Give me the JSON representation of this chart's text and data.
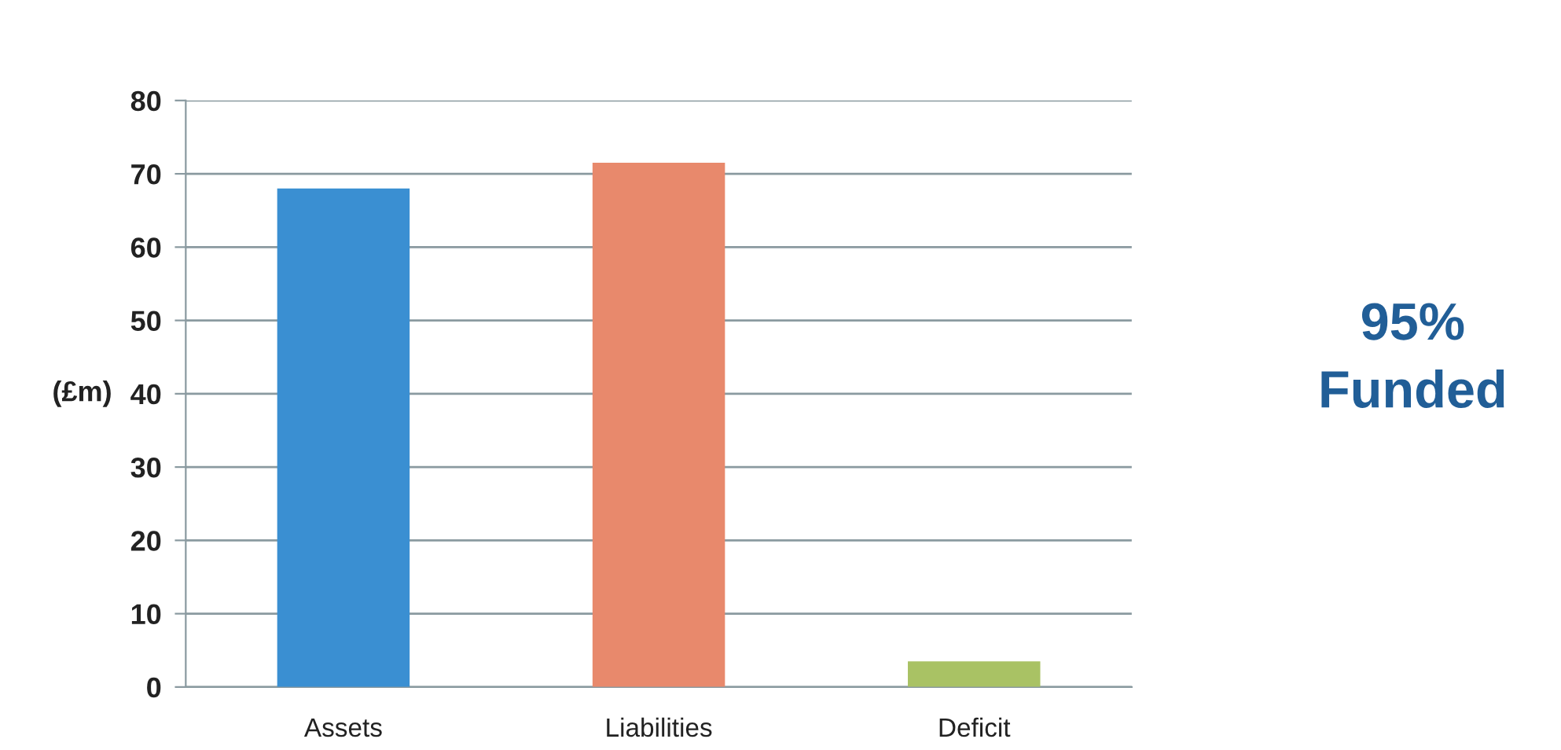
{
  "chart_data": {
    "type": "bar",
    "categories": [
      "Assets",
      "Liabilities",
      "Deficit"
    ],
    "values": [
      68,
      71.5,
      3.5
    ],
    "colors": [
      "#3a8fd2",
      "#e8896c",
      "#a9c264"
    ],
    "ylabel": "(£m)",
    "ylim": [
      0,
      80
    ],
    "yticks": [
      0,
      10,
      20,
      30,
      40,
      50,
      60,
      70,
      80
    ],
    "grid": "y",
    "annotations": [
      "95%\nFunded"
    ]
  }
}
